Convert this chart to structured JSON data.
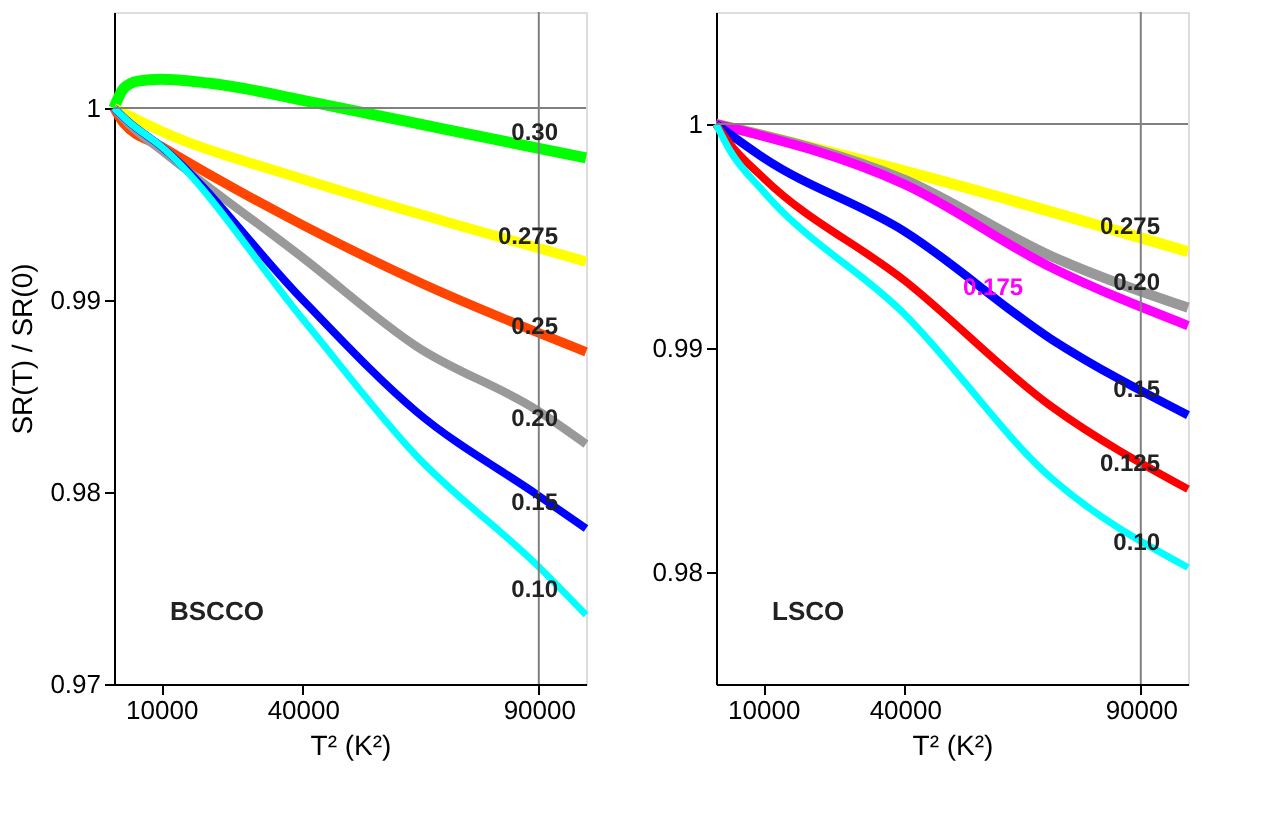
{
  "chart_data": [
    {
      "type": "line",
      "xlabel": "T² (K²)",
      "ylabel": "SR(T) / SR(0)",
      "xlim": [
        0,
        100000
      ],
      "xticks": [
        10000,
        40000,
        90000
      ],
      "ylim": [
        0.97,
        1.005
      ],
      "yticks": [
        {
          "value": 0.97,
          "label": "0.97"
        },
        {
          "value": 0.98,
          "label": "0.98"
        },
        {
          "value": 0.99,
          "label": "0.99"
        },
        {
          "value": 1,
          "label": "1"
        }
      ],
      "grid": false,
      "marker": "none",
      "line_style": "solid",
      "ref_lines": [
        {
          "axis": "x",
          "value": 90000,
          "color": "#808080"
        },
        {
          "axis": "y",
          "value": 1,
          "color": "#808080"
        }
      ],
      "series": [
        {
          "name": "0.30",
          "color": "#00ff00",
          "x": [
            0,
            2000,
            5000,
            10000,
            20000,
            44000,
            70000,
            90000,
            100000
          ],
          "values": [
            1.0,
            1.001,
            1.0014,
            1.0015,
            1.0013,
            1.0002,
            0.9989,
            0.9979,
            0.9974
          ]
        },
        {
          "name": "0.275",
          "color": "#ffff00",
          "x": [
            0,
            10000,
            40000,
            70000,
            100000
          ],
          "values": [
            1.0,
            0.9988,
            0.9963,
            0.9941,
            0.992
          ]
        },
        {
          "name": "0.25",
          "color": "#ff4500",
          "x": [
            0,
            2000,
            10000,
            40000,
            64000,
            100000
          ],
          "values": [
            1.0,
            0.9992,
            0.998,
            0.9939,
            0.991,
            0.9873
          ]
        },
        {
          "name": "0.20",
          "color": "#999999",
          "x": [
            0,
            3000,
            10000,
            40000,
            64000,
            90000,
            100000
          ],
          "values": [
            1.0,
            0.9992,
            0.9978,
            0.9922,
            0.9876,
            0.9842,
            0.9825
          ]
        },
        {
          "name": "0.15",
          "color": "#0000ff",
          "x": [
            0,
            3000,
            10000,
            40000,
            64000,
            90000,
            100000
          ],
          "values": [
            1.0,
            0.9993,
            0.998,
            0.99,
            0.9842,
            0.9798,
            0.9781
          ]
        },
        {
          "name": "0.10",
          "color": "#00ffff",
          "x": [
            0,
            3000,
            10000,
            40000,
            64000,
            90000,
            100000
          ],
          "values": [
            1.0,
            0.9993,
            0.998,
            0.989,
            0.9819,
            0.9761,
            0.9736
          ]
        }
      ],
      "annotations": [
        "BSCCO"
      ]
    },
    {
      "type": "line",
      "xlabel": "T² (K²)",
      "xlim": [
        0,
        100000
      ],
      "xticks": [
        10000,
        40000,
        90000
      ],
      "ylim": [
        0.975,
        1.005
      ],
      "yticks": [
        {
          "value": 0.98,
          "label": "0.98"
        },
        {
          "value": 0.99,
          "label": "0.99"
        },
        {
          "value": 1,
          "label": "1"
        }
      ],
      "grid": false,
      "marker": "none",
      "line_style": "solid",
      "ref_lines": [
        {
          "axis": "x",
          "value": 90000,
          "color": "#808080"
        },
        {
          "axis": "y",
          "value": 1,
          "color": "#808080"
        }
      ],
      "series": [
        {
          "name": "0.275",
          "color": "#ffff00",
          "x": [
            0,
            40000,
            100000
          ],
          "values": [
            1.0,
            0.9979,
            0.9943
          ]
        },
        {
          "name": "0.20",
          "color": "#999999",
          "x": [
            0,
            40000,
            71000,
            100000
          ],
          "values": [
            1.0,
            0.9975,
            0.9941,
            0.9918
          ]
        },
        {
          "name": "0.175",
          "color": "#ff00ff",
          "x": [
            0,
            40000,
            71000,
            100000
          ],
          "values": [
            1.0,
            0.9973,
            0.9936,
            0.991
          ]
        },
        {
          "name": "0.15",
          "color": "#0000ff",
          "x": [
            0,
            10000,
            40000,
            71000,
            100000
          ],
          "values": [
            1.0,
            0.9985,
            0.9952,
            0.9904,
            0.987
          ]
        },
        {
          "name": "0.125",
          "color": "#ff0000",
          "x": [
            0,
            3000,
            10000,
            40000,
            71000,
            100000
          ],
          "values": [
            1.0,
            0.9991,
            0.9976,
            0.993,
            0.9874,
            0.9837
          ]
        },
        {
          "name": "0.10",
          "color": "#00ffff",
          "x": [
            0,
            3000,
            10000,
            40000,
            71000,
            100000
          ],
          "values": [
            1.0,
            0.9988,
            0.997,
            0.9915,
            0.9842,
            0.9802
          ]
        }
      ],
      "annotations": [
        "LSCO"
      ]
    }
  ]
}
